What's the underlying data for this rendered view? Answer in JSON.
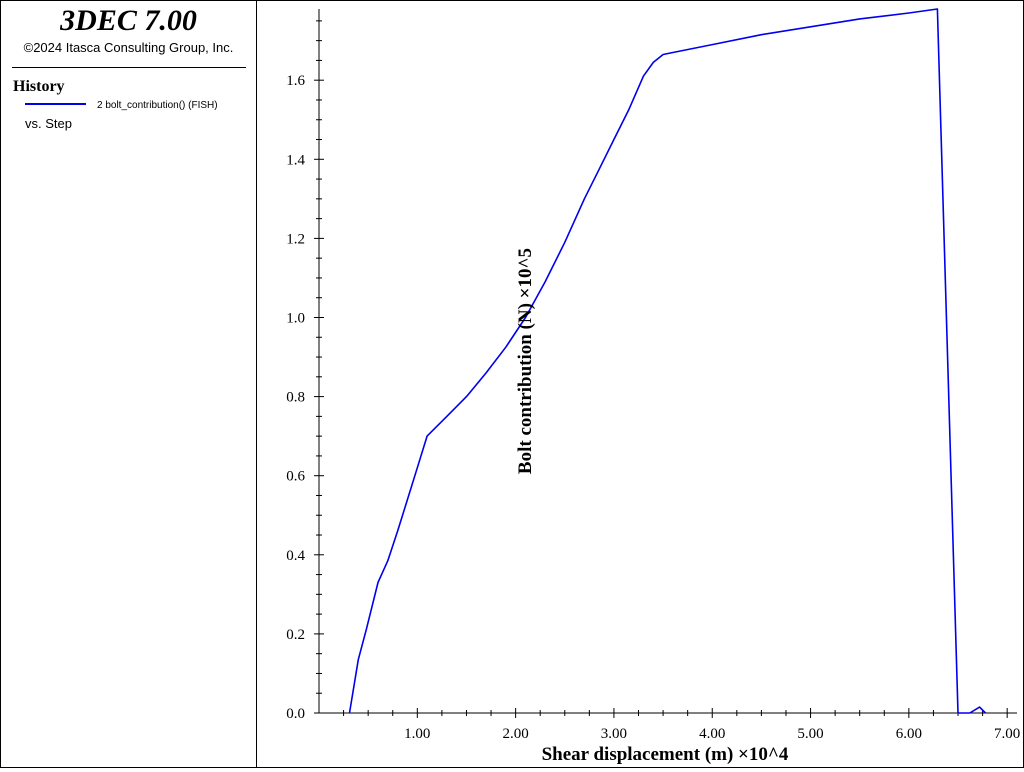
{
  "app": {
    "title": "3DEC 7.00",
    "copyright": "©2024 Itasca Consulting Group, Inc."
  },
  "legend": {
    "heading": "History",
    "entry_label": "2 bolt_contribution() (FISH)",
    "vs_label": "vs. Step",
    "line_color": "#0000ee"
  },
  "chart_data": {
    "type": "line",
    "xlabel": "Shear displacement (m) ×10^4",
    "ylabel": "Bolt contribution (N) ×10^5",
    "xlim": [
      0.0,
      7.1
    ],
    "ylim": [
      0.0,
      1.78
    ],
    "x_ticks": [
      "1.00",
      "2.00",
      "3.00",
      "4.00",
      "5.00",
      "6.00",
      "7.00"
    ],
    "y_ticks": [
      "0.0",
      "0.2",
      "0.4",
      "0.6",
      "0.8",
      "1.0",
      "1.2",
      "1.4",
      "1.6"
    ],
    "grid": false,
    "series": [
      {
        "color": "#0000ee",
        "x": [
          0.31,
          0.4,
          0.48,
          0.6,
          0.7,
          0.8,
          0.9,
          1.0,
          1.1,
          1.3,
          1.5,
          1.7,
          1.9,
          2.1,
          2.3,
          2.5,
          2.7,
          2.85,
          3.0,
          3.15,
          3.3,
          3.4,
          3.5,
          3.6,
          4.0,
          4.5,
          5.0,
          5.5,
          6.0,
          6.29,
          6.5,
          6.62,
          6.72,
          6.78
        ],
        "y": [
          0.0,
          0.135,
          0.21,
          0.33,
          0.385,
          0.46,
          0.54,
          0.62,
          0.7,
          0.75,
          0.8,
          0.86,
          0.925,
          1.0,
          1.09,
          1.19,
          1.3,
          1.375,
          1.45,
          1.525,
          1.61,
          1.645,
          1.665,
          1.67,
          1.69,
          1.715,
          1.735,
          1.755,
          1.77,
          1.78,
          0.0,
          0.0,
          0.015,
          0.0
        ]
      }
    ]
  }
}
